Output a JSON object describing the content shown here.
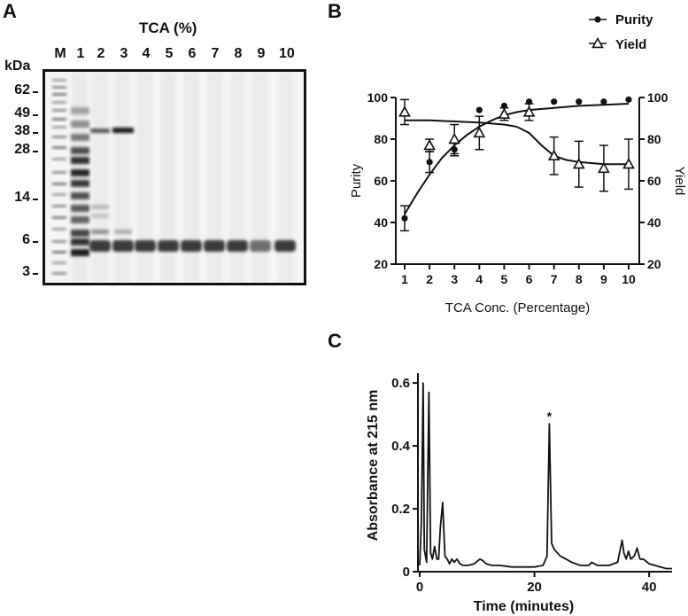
{
  "panel_a": {
    "letter": "A",
    "header": "TCA (%)",
    "unit_label": "kDa",
    "lane_labels": [
      "M",
      "1",
      "2",
      "3",
      "4",
      "5",
      "6",
      "7",
      "8",
      "9",
      "10"
    ],
    "marker_labels": [
      "62",
      "49",
      "38",
      "28",
      "14",
      "6",
      "3"
    ]
  },
  "panel_b": {
    "letter": "B"
  },
  "panel_c": {
    "letter": "C"
  },
  "colors": {
    "ink": "#111111",
    "gel_bg": "#f5f5f5",
    "band": "#1a1a1a"
  },
  "chart_data": [
    {
      "type": "scatter",
      "panel": "B",
      "xlabel": "TCA Conc. (Percentage)",
      "ylabel": "Purity",
      "y2label": "Yield",
      "x": [
        1,
        2,
        3,
        4,
        5,
        6,
        7,
        8,
        9,
        10
      ],
      "xlim": [
        1,
        10
      ],
      "ylim": [
        20,
        100
      ],
      "y2lim": [
        20,
        100
      ],
      "yticks": [
        20,
        40,
        60,
        80,
        100
      ],
      "legend_position": "top-right",
      "series": [
        {
          "name": "Purity",
          "marker": "filled-circle",
          "axis": "left",
          "values": [
            42,
            69,
            75,
            94,
            96,
            98,
            98,
            98,
            98,
            99
          ],
          "errors": [
            6,
            5,
            3,
            0,
            0,
            0,
            0,
            0,
            0,
            0
          ],
          "fit": [
            [
              1,
              44
            ],
            [
              1.5,
              54
            ],
            [
              2,
              63
            ],
            [
              2.5,
              71
            ],
            [
              3,
              77
            ],
            [
              3.5,
              82
            ],
            [
              4,
              86
            ],
            [
              4.5,
              89
            ],
            [
              5,
              91.5
            ],
            [
              5.5,
              93
            ],
            [
              6,
              94
            ],
            [
              7,
              95
            ],
            [
              8,
              96
            ],
            [
              9,
              96.5
            ],
            [
              10,
              97
            ]
          ]
        },
        {
          "name": "Yield",
          "marker": "open-triangle",
          "axis": "right",
          "values": [
            93,
            77,
            80,
            83,
            92,
            93,
            72,
            68,
            66,
            68
          ],
          "errors": [
            6,
            3,
            7,
            8,
            3,
            4,
            9,
            11,
            11,
            12
          ],
          "fit": [
            [
              1,
              89
            ],
            [
              2,
              89
            ],
            [
              3,
              88.5
            ],
            [
              4,
              88
            ],
            [
              5,
              87
            ],
            [
              5.5,
              86
            ],
            [
              6,
              83
            ],
            [
              6.5,
              77
            ],
            [
              7,
              72
            ],
            [
              7.5,
              70
            ],
            [
              8,
              69
            ],
            [
              9,
              68
            ],
            [
              10,
              68
            ]
          ]
        }
      ]
    },
    {
      "type": "line",
      "panel": "C",
      "xlabel": "Time (minutes)",
      "ylabel": "Absorbance at 215 nm",
      "xlim": [
        0,
        44
      ],
      "ylim": [
        0,
        0.62
      ],
      "xticks": [
        0,
        20,
        40
      ],
      "yticks": [
        0,
        0.2,
        0.4,
        0.6
      ],
      "annotations": [
        {
          "text": "*",
          "x": 22.6,
          "y": 0.48
        }
      ],
      "series": [
        {
          "x": [
            0,
            0.3,
            0.6,
            0.8,
            1.2,
            1.6,
            1.9,
            2.2,
            2.6,
            3.0,
            3.3,
            3.6,
            4.0,
            4.4,
            4.8,
            5.2,
            5.6,
            6.0,
            6.5,
            7.0,
            7.6,
            8.5,
            9.5,
            10.5,
            11.0,
            11.6,
            12.5,
            14,
            16,
            18,
            20,
            21.5,
            22.2,
            22.6,
            23.0,
            23.5,
            24.5,
            25.5,
            26.5,
            28,
            29.5,
            30.0,
            31,
            33,
            34.5,
            35.3,
            35.6,
            36.0,
            36.4,
            36.8,
            37.4,
            37.9,
            38.4,
            39.0,
            40,
            41,
            42,
            43,
            44
          ],
          "y": [
            0.02,
            0.16,
            0.6,
            0.07,
            0.03,
            0.57,
            0.06,
            0.04,
            0.08,
            0.04,
            0.04,
            0.14,
            0.22,
            0.05,
            0.04,
            0.025,
            0.04,
            0.03,
            0.04,
            0.025,
            0.02,
            0.02,
            0.025,
            0.04,
            0.035,
            0.025,
            0.02,
            0.02,
            0.015,
            0.015,
            0.015,
            0.02,
            0.05,
            0.47,
            0.09,
            0.07,
            0.05,
            0.04,
            0.03,
            0.02,
            0.02,
            0.03,
            0.02,
            0.02,
            0.03,
            0.1,
            0.06,
            0.04,
            0.065,
            0.04,
            0.05,
            0.075,
            0.04,
            0.04,
            0.025,
            0.02,
            0.015,
            0.01,
            0.01
          ]
        }
      ]
    }
  ]
}
